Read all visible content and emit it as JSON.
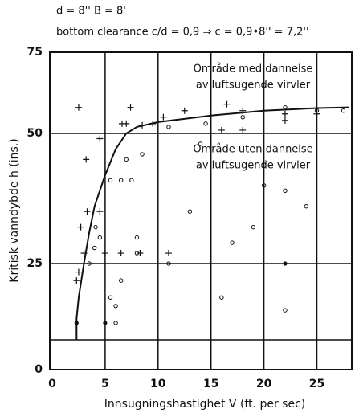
{
  "chart_data": {
    "type": "scatter",
    "title": "d = 8'' B = 8'",
    "subtitle": "bottom clearance c/d = 0,9 ⇒ c = 0,9•8'' = 7,2''",
    "x_label": "Innsugningshastighet V (ft. per sec)",
    "y_label": "Kritisk vanndybde h (ins.)",
    "annotations": [
      "Område med dannelse",
      "av luftsugende virvler",
      "Område uten dannelse",
      "av luftsugende virvler"
    ],
    "xlim": [
      0,
      28.3
    ],
    "xticks": [
      0,
      5,
      10,
      15,
      20,
      25
    ],
    "ylim": [
      0,
      75
    ],
    "yticks": [
      0,
      25,
      50,
      75
    ],
    "reference_lines": [
      7
    ],
    "grid": true,
    "series": [
      {
        "marker": "plus",
        "color": "#111",
        "x": [
          2.5,
          7.4,
          6.6,
          7,
          8.5,
          9.5,
          10.5,
          12.5,
          16,
          18,
          18,
          22,
          22,
          3.2,
          4.5,
          2.3,
          2.5,
          2.7,
          3,
          3.3,
          4.5,
          5,
          6.5,
          8.3,
          11,
          16.5,
          25
        ],
        "values": [
          58,
          58,
          53,
          53,
          52.5,
          53,
          55,
          57,
          51,
          51,
          57,
          54,
          56,
          45,
          49,
          21,
          23,
          32,
          27,
          35,
          35,
          27,
          27,
          27,
          27,
          59,
          56
        ]
      },
      {
        "marker": "circle",
        "color": "#111",
        "x": [
          3.5,
          4,
          4.1,
          4.5,
          5.5,
          6.5,
          7,
          7.5,
          8.5,
          8,
          8,
          6.5,
          6,
          5.5,
          6,
          11,
          13,
          16,
          17,
          19,
          20,
          22,
          22,
          24,
          14,
          14.5,
          18,
          22,
          25,
          27.5,
          11
        ],
        "values": [
          25,
          28,
          32,
          30,
          41,
          41,
          45,
          41,
          46,
          30,
          27,
          21,
          15,
          17,
          11,
          25,
          35,
          17,
          29,
          32,
          40,
          39,
          14,
          36,
          48,
          53,
          55,
          58,
          57,
          57,
          52
        ]
      },
      {
        "marker": "dot",
        "color": "#111",
        "x": [
          2.3,
          5,
          22
        ],
        "values": [
          11,
          11,
          25
        ]
      },
      {
        "marker": "line",
        "color": "#111",
        "x": [
          2.3,
          2.3,
          2.5,
          3,
          3.5,
          4,
          5,
          6,
          7,
          8,
          10,
          15,
          20,
          25,
          28
        ],
        "values": [
          7,
          12,
          17,
          25,
          31,
          36,
          42,
          47,
          50,
          52,
          53.5,
          55.5,
          57,
          57.8,
          58
        ]
      }
    ]
  }
}
